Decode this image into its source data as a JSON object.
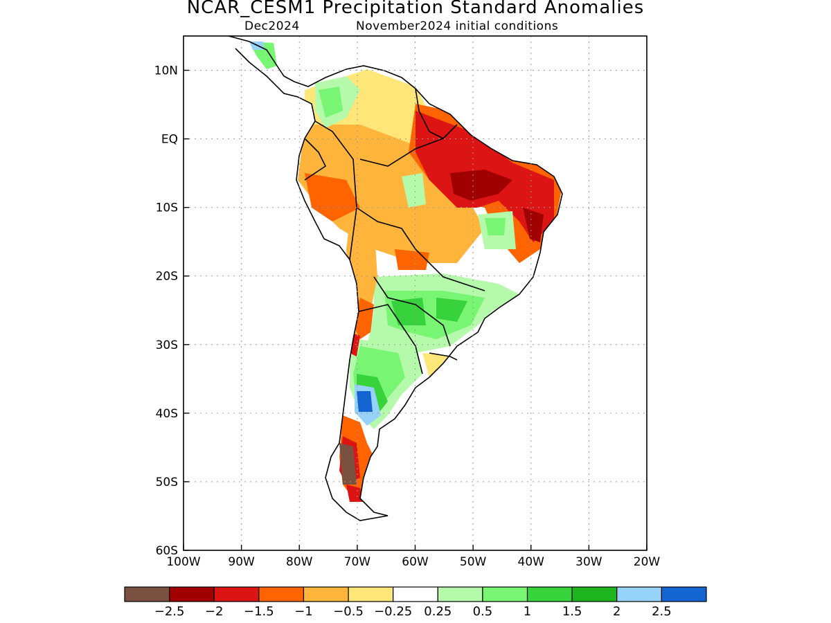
{
  "title": "NCAR_CESM1 Precipitation Standard Anomalies",
  "subtitle": {
    "valid": "Dec2024",
    "init": "November2024 initial conditions"
  },
  "map": {
    "region": "South America",
    "lon_range": [
      -100,
      -20
    ],
    "lat_range": [
      -60,
      15
    ],
    "lon_ticks": [
      "100W",
      "90W",
      "80W",
      "70W",
      "60W",
      "50W",
      "40W",
      "30W",
      "20W"
    ],
    "lat_ticks": [
      "10N",
      "EQ",
      "10S",
      "20S",
      "30S",
      "40S",
      "50S",
      "60S"
    ],
    "grid": "dotted"
  },
  "colorbar": {
    "colors": [
      "#7a5040",
      "#a00000",
      "#dc1414",
      "#ff6400",
      "#ffb43c",
      "#ffe678",
      "#ffffff",
      "#b4faaa",
      "#78f573",
      "#37d23c",
      "#1eb41e",
      "#96d2fa",
      "#1464d2"
    ],
    "labels": [
      "−2.5",
      "−2",
      "−1.5",
      "−1",
      "−0.5",
      "−0.25",
      "0.25",
      "0.5",
      "1",
      "1.5",
      "2",
      "2.5"
    ]
  }
}
